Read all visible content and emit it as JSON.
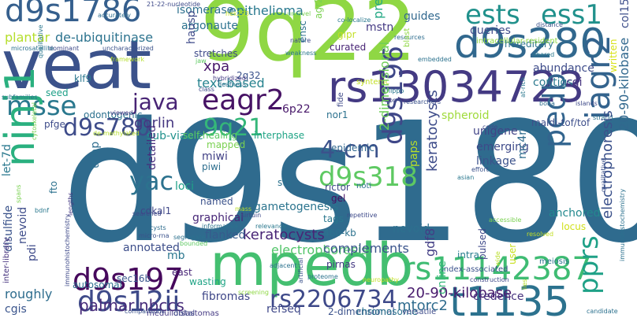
{
  "words": [
    {
      "text": "d9s180",
      "color": "#2f6b8e"
    },
    {
      "text": "9q22",
      "color": "#8fd744"
    },
    {
      "text": "veat",
      "color": "#3b528b"
    },
    {
      "text": "mpedb",
      "color": "#44bf70"
    },
    {
      "text": "rs13034723",
      "color": "#443a83"
    },
    {
      "text": "d9s280",
      "color": "#31688e"
    },
    {
      "text": "d9s1786",
      "color": "#355f8d"
    },
    {
      "text": "ests",
      "color": "#21918c"
    },
    {
      "text": "ess1",
      "color": "#21918c"
    },
    {
      "text": "t1135",
      "color": "#2c728e"
    },
    {
      "text": "rs11142387",
      "color": "#3fbc73"
    },
    {
      "text": "d9s197",
      "color": "#46085c"
    },
    {
      "text": "d9s12ii",
      "color": "#3e4a89"
    },
    {
      "text": "rs2206734",
      "color": "#3e4989"
    },
    {
      "text": "eagr2",
      "color": "#471365"
    },
    {
      "text": "msse",
      "color": "#2a788e"
    },
    {
      "text": "d9s780",
      "color": "#2ab07f"
    },
    {
      "text": "9q21",
      "color": "#3e4c8a"
    },
    {
      "text": "d9s318",
      "color": "#35b779"
    },
    {
      "text": "yac",
      "color": "#5ec962"
    },
    {
      "text": "4-cm",
      "color": "#2c728e"
    },
    {
      "text": "java",
      "color": "#3b528b"
    },
    {
      "text": "ninj1",
      "color": "#482475"
    },
    {
      "text": "pedb",
      "color": "#32648e"
    },
    {
      "text": "iagr2",
      "color": "#33638d"
    },
    {
      "text": "d9s196",
      "color": "#3f4788"
    },
    {
      "text": "pprs",
      "color": "#1fa187"
    },
    {
      "text": "palmar",
      "color": "#472c7a"
    },
    {
      "text": "nbccs",
      "color": "#472c7a"
    },
    {
      "text": "plantar",
      "color": "#b5de2b"
    },
    {
      "text": "de-ubiquitinase",
      "color": "#2c738e"
    },
    {
      "text": "epithelioma",
      "color": "#29798e"
    },
    {
      "text": "text-based",
      "color": "#26828e"
    },
    {
      "text": "gorlin",
      "color": "#453781"
    },
    {
      "text": "predicated",
      "color": "#22a884"
    },
    {
      "text": "keratocysts",
      "color": "#3e4c8a"
    },
    {
      "text": "electrophoresis",
      "color": "#3b518b"
    },
    {
      "text": "20-90-kilobase",
      "color": "#31688e"
    },
    {
      "text": "2-dimensional",
      "color": "#6ece58"
    },
    {
      "text": "fibromas",
      "color": "#482576"
    },
    {
      "text": "refseq",
      "color": "#52c569"
    },
    {
      "text": "credence",
      "color": "#481b6d"
    },
    {
      "text": "mtorc2",
      "color": "#3b528b"
    },
    {
      "text": "cgis",
      "color": "#3f4788"
    },
    {
      "text": "disulfide",
      "color": "#3f4889"
    },
    {
      "text": "sec16b",
      "color": "#46327e"
    },
    {
      "text": "mb",
      "color": "#2f6c8e"
    },
    {
      "text": "graphical",
      "color": "#3a548c"
    },
    {
      "text": "flanked",
      "color": "#3a538b"
    },
    {
      "text": "complements",
      "color": "#39568c"
    },
    {
      "text": "pirnas",
      "color": "#2a768e"
    },
    {
      "text": "trrap",
      "color": "#482878"
    },
    {
      "text": "let-7d",
      "color": "#375b8d"
    },
    {
      "text": "nevoid",
      "color": "#3a548c"
    },
    {
      "text": "emerging",
      "color": "#443983"
    },
    {
      "text": "unigene",
      "color": "#2e6d8e"
    },
    {
      "text": "maldi-tof/tof",
      "color": "#29788e"
    },
    {
      "text": "spheroid",
      "color": "#3e4c8a"
    },
    {
      "text": "mc4r",
      "color": "#2d708e"
    },
    {
      "text": "nor1",
      "color": "#3e4a89"
    },
    {
      "text": "6p22",
      "color": "#414487"
    },
    {
      "text": "sub-viable",
      "color": "#3d4e8a"
    },
    {
      "text": "self-healing",
      "color": "#9fda3a"
    },
    {
      "text": "interphase",
      "color": "#2f6c8e"
    },
    {
      "text": "epidemic",
      "color": "#2c718e"
    },
    {
      "text": "miwi",
      "color": "#48186a"
    },
    {
      "text": "piwi",
      "color": "#21918c"
    },
    {
      "text": "mapped",
      "color": "#5ec962"
    },
    {
      "text": "detailed",
      "color": "#20a486"
    },
    {
      "text": "rictor",
      "color": "#31678e"
    },
    {
      "text": "noti",
      "color": "#424186"
    },
    {
      "text": "gel",
      "color": "#2e6f8e"
    },
    {
      "text": "gametogenesis",
      "color": "#7ad151"
    },
    {
      "text": "named",
      "color": "#472e7c"
    },
    {
      "text": "tags",
      "color": "#3f4788"
    },
    {
      "text": "460-kb",
      "color": "#2c728e"
    },
    {
      "text": "cdkal1",
      "color": "#470e61"
    },
    {
      "text": "loci",
      "color": "#2b748e"
    },
    {
      "text": "gdf8",
      "color": "#3b528b"
    },
    {
      "text": "paps",
      "color": "#2a778e"
    },
    {
      "text": "abundance",
      "color": "#2c728e"
    },
    {
      "text": "contigs",
      "color": "#3f4788"
    },
    {
      "text": "cgi",
      "color": "#1fa088"
    },
    {
      "text": "queries",
      "color": "#433e85"
    },
    {
      "text": "hereditary",
      "color": "#b8de29"
    },
    {
      "text": "col15a1",
      "color": "#3e4c8a"
    },
    {
      "text": "written",
      "color": "#2a788e"
    },
    {
      "text": "mstn",
      "color": "#46337f"
    },
    {
      "text": "guides",
      "color": "#3e4a89"
    },
    {
      "text": "isomerase",
      "color": "#2c738e"
    },
    {
      "text": "argonaute",
      "color": "#3d4e8a"
    },
    {
      "text": "stretches",
      "color": "#d8e219"
    },
    {
      "text": "xpa",
      "color": "#443983"
    },
    {
      "text": "2q32",
      "color": "#31688e"
    },
    {
      "text": "agr2",
      "color": "#2d708e"
    },
    {
      "text": "hausp",
      "color": "#2c728e"
    },
    {
      "text": "curated",
      "color": "#3e4989"
    },
    {
      "text": "gipr",
      "color": "#48186a"
    },
    {
      "text": "klf9",
      "color": "#3b528b"
    },
    {
      "text": "odontogenic",
      "color": "#7ad151"
    },
    {
      "text": "pfge",
      "color": "#3e4a89"
    },
    {
      "text": "seed",
      "color": "#482475"
    },
    {
      "text": "sts",
      "color": "#c2df23"
    },
    {
      "text": "anchored",
      "color": "#2a778e"
    },
    {
      "text": "locus",
      "color": "#2c718e"
    },
    {
      "text": "linkage",
      "color": "#3e4c8a"
    },
    {
      "text": "intra",
      "color": "#1fa088"
    },
    {
      "text": "pulsed",
      "color": "#2c728e"
    },
    {
      "text": "user",
      "color": "#23898e"
    },
    {
      "text": "online",
      "color": "#d0e11c"
    },
    {
      "text": "pits",
      "color": "#3b528b"
    },
    {
      "text": "relational",
      "color": "#287c8e"
    },
    {
      "text": "archives",
      "color": "#3e4989"
    },
    {
      "text": "sterility",
      "color": "#c8e020"
    },
    {
      "text": "roughly",
      "color": "#35b779"
    },
    {
      "text": "pdi",
      "color": "#2e6d8e"
    },
    {
      "text": "inter-library",
      "color": "#3e4a89"
    },
    {
      "text": "annotated",
      "color": "#46337f"
    },
    {
      "text": "east",
      "color": "#3d4e8a"
    },
    {
      "text": "wasting",
      "color": "#482677"
    },
    {
      "text": "autosomal",
      "color": "#20a486"
    },
    {
      "text": "fto",
      "color": "#2e6f8e"
    },
    {
      "text": "spans",
      "color": "#2c718e"
    },
    {
      "text": "chromosome",
      "color": "#7ad151"
    },
    {
      "text": "versatile",
      "color": "#2c738e"
    },
    {
      "text": "medulloblastomas",
      "color": "#3e4c8a"
    },
    {
      "text": "distal",
      "color": "#443983"
    },
    {
      "text": "index-associated",
      "color": "#3e4a89"
    },
    {
      "text": "meiosis",
      "color": "#3b528b"
    },
    {
      "text": "21-22-nucleotide",
      "color": "#2c728e"
    },
    {
      "text": "unravel",
      "color": "#3e4989"
    },
    {
      "text": "co-localize",
      "color": "#7ad151"
    },
    {
      "text": "distance",
      "color": "#2a788e"
    },
    {
      "text": "intracellular-resident",
      "color": "#3b528b"
    },
    {
      "text": "shared",
      "color": "#8fd744"
    },
    {
      "text": "embedded",
      "color": "#2a788e"
    },
    {
      "text": "resources",
      "color": "#2c728e"
    },
    {
      "text": "dominant",
      "color": "#2e6d8e"
    },
    {
      "text": "uncharacterized",
      "color": "#3e4989"
    },
    {
      "text": "microsatellite",
      "color": "#3b528b"
    },
    {
      "text": "weakness",
      "color": "#2c718e"
    },
    {
      "text": "nature",
      "color": "#2a778e"
    },
    {
      "text": "jaw",
      "color": "#3e4a89"
    },
    {
      "text": "framework",
      "color": "#5ec962"
    },
    {
      "text": "hybridized",
      "color": "#b5de2b"
    },
    {
      "text": "deafness",
      "color": "#443983"
    },
    {
      "text": "syntenic",
      "color": "#2c728e"
    },
    {
      "text": "researchers",
      "color": "#c2df23"
    },
    {
      "text": "hippo",
      "color": "#3b528b"
    },
    {
      "text": "upr",
      "color": "#3e4989"
    },
    {
      "text": "mass",
      "color": "#2a788e"
    },
    {
      "text": "sirtuin",
      "color": "#b8de29"
    },
    {
      "text": "informative",
      "color": "#3e4c8a"
    },
    {
      "text": "relevance",
      "color": "#2c728e"
    },
    {
      "text": "searched",
      "color": "#2a788e"
    },
    {
      "text": "segregate",
      "color": "#3e4989"
    },
    {
      "text": "bounded",
      "color": "#2c718e"
    },
    {
      "text": "micro-rna",
      "color": "#5ec962"
    },
    {
      "text": "cysts",
      "color": "#3b528b"
    },
    {
      "text": "lengths",
      "color": "#2e6d8e"
    },
    {
      "text": "bdnf",
      "color": "#443983"
    },
    {
      "text": "adjacent",
      "color": "#2a788e"
    },
    {
      "text": "repetitive",
      "color": "#2c728e"
    },
    {
      "text": "artificial",
      "color": "#3e4a89"
    },
    {
      "text": "proteome",
      "color": "#3b528b"
    },
    {
      "text": "screening",
      "color": "#2c738e"
    },
    {
      "text": "construction",
      "color": "#8fd744"
    },
    {
      "text": "lies",
      "color": "#3e4989"
    },
    {
      "text": "candidate",
      "color": "#b5de2b"
    },
    {
      "text": "accessible",
      "color": "#2c718e"
    },
    {
      "text": "resolved",
      "color": "#7ad151"
    },
    {
      "text": "effort",
      "color": "#c2df23"
    },
    {
      "text": "asian",
      "color": "#3b528b"
    },
    {
      "text": "strand",
      "color": "#2a788e"
    },
    {
      "text": "islands",
      "color": "#2c728e"
    },
    {
      "text": "bona",
      "color": "#3e4a89"
    },
    {
      "text": "code",
      "color": "#2e6d8e"
    },
    {
      "text": "at-rich",
      "color": "#3e4989"
    },
    {
      "text": "qualitative",
      "color": "#2a788e"
    },
    {
      "text": "immunohistochemistry",
      "color": "#3b528b"
    },
    {
      "text": "de-methylated",
      "color": "#2c718e"
    },
    {
      "text": "cytoskeletal",
      "color": "#2a778e"
    },
    {
      "text": "comparisons",
      "color": "#3e4989"
    },
    {
      "text": "viewed",
      "color": "#b5de2b"
    },
    {
      "text": "subfamilies",
      "color": "#7ad151"
    },
    {
      "text": "class",
      "color": "#3b528b"
    },
    {
      "text": "hek293",
      "color": "#443983"
    },
    {
      "text": "accurately",
      "color": "#2c728e"
    },
    {
      "text": "fide",
      "color": "#3e4a89"
    },
    {
      "text": "blast",
      "color": "#c2df23"
    },
    {
      "text": "ensc",
      "color": "#2e6d8e"
    },
    {
      "text": "wide",
      "color": "#8fd744"
    },
    {
      "text": "neuropathy",
      "color": "#3e4989"
    },
    {
      "text": "serse",
      "color": "#b8de29"
    },
    {
      "text": "disparate",
      "color": "#2c718e"
    },
    {
      "text": "prune",
      "color": "#3b528b"
    },
    {
      "text": "refined",
      "color": "#c2df23"
    }
  ]
}
